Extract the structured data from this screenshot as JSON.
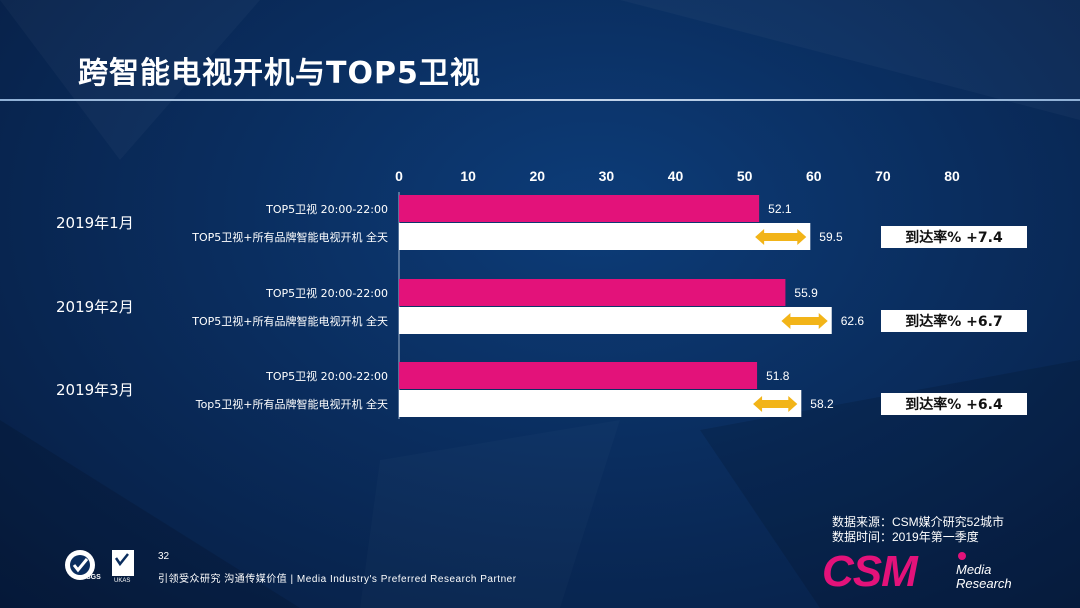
{
  "title": "跨智能电视开机与TOP5卫视",
  "chart_data": {
    "type": "bar",
    "orientation": "horizontal",
    "xlim": [
      0,
      80
    ],
    "x_ticks": [
      "0",
      "10",
      "20",
      "30",
      "40",
      "50",
      "60",
      "70",
      "80"
    ],
    "groups": [
      {
        "label": "2019年1月",
        "bars": [
          {
            "label": "TOP5卫视 20:00-22:00",
            "value": 52.1,
            "value_label": "52.1",
            "color": "#e3127a"
          },
          {
            "label": "TOP5卫视+所有品牌智能电视开机 全天",
            "value": 59.5,
            "value_label": "59.5",
            "color": "#ffffff"
          }
        ],
        "annotation": "到达率% +7.4"
      },
      {
        "label": "2019年2月",
        "bars": [
          {
            "label": "TOP5卫视 20:00-22:00",
            "value": 55.9,
            "value_label": "55.9",
            "color": "#e3127a"
          },
          {
            "label": "TOP5卫视+所有品牌智能电视开机 全天",
            "value": 62.6,
            "value_label": "62.6",
            "color": "#ffffff"
          }
        ],
        "annotation": "到达率% +6.7"
      },
      {
        "label": "2019年3月",
        "bars": [
          {
            "label": "TOP5卫视 20:00-22:00",
            "value": 51.8,
            "value_label": "51.8",
            "color": "#e3127a"
          },
          {
            "label": "Top5卫视+所有品牌智能电视开机 全天",
            "value": 58.2,
            "value_label": "58.2",
            "color": "#ffffff"
          }
        ],
        "annotation": "到达率% +6.4"
      }
    ],
    "arrow_color": "#f2b418"
  },
  "footer": {
    "source_line1": "数据来源：CSM媒介研究52城市",
    "source_line2": "数据时间：2019年第一季度",
    "page_number": "32",
    "tagline": "引领受众研究  沟通传媒价值 | Media  Industry's  Preferred  Research  Partner"
  },
  "logo": {
    "name": "CSM",
    "sub1": "Media",
    "sub2": "Research",
    "color": "#e3127a"
  },
  "cert": {
    "sgs": "SGS",
    "ukas": "UKAS"
  }
}
